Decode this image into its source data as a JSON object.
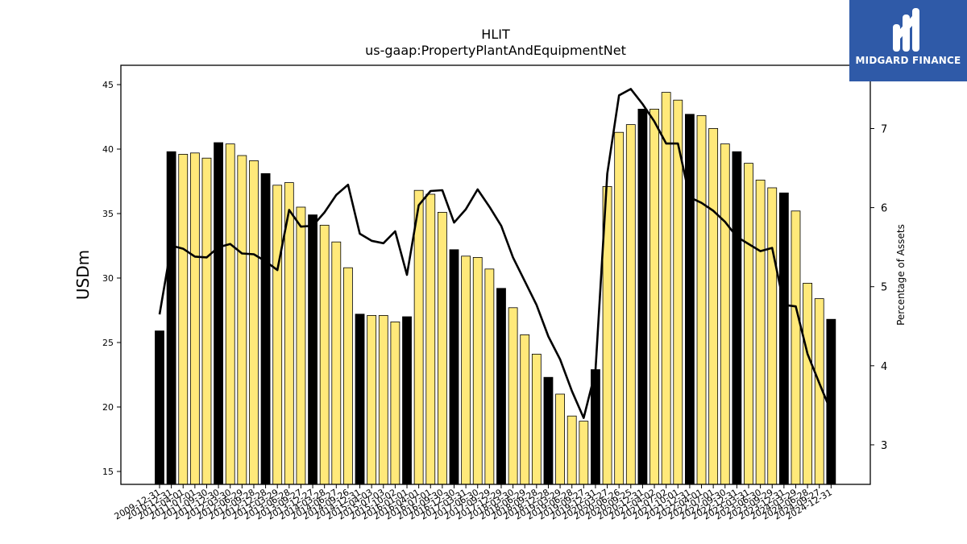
{
  "brand": {
    "name": "MIDGARD FINANCE",
    "color": "#2f5aa8"
  },
  "chart_data": {
    "type": "bar",
    "title": "HLIT",
    "subtitle": "us-gaap:PropertyPlantAndEquipmentNet",
    "ylabel": "USDm",
    "y2label": "Percentage of Assets",
    "ylim": [
      14,
      46.5
    ],
    "y2lim": [
      2.5,
      7.8
    ],
    "yticks": [
      15,
      20,
      25,
      30,
      35,
      40,
      45
    ],
    "y2ticks": [
      3,
      4,
      5,
      6,
      7
    ],
    "colors": {
      "annual": "#000000",
      "quarterly": "#ffe97a",
      "line": "#000000"
    },
    "categories": [
      "2009-12-31",
      "2010-12-31",
      "2011-04-01",
      "2011-07-01",
      "2011-09-30",
      "2011-12-30",
      "2012-03-30",
      "2012-06-29",
      "2012-09-28",
      "2012-12-28",
      "2013-03-29",
      "2013-06-28",
      "2013-09-27",
      "2013-12-27",
      "2014-03-28",
      "2014-06-27",
      "2014-09-26",
      "2014-12-31",
      "2015-04-03",
      "2015-07-03",
      "2015-10-02",
      "2016-01-01",
      "2016-04-01",
      "2016-07-01",
      "2016-09-30",
      "2016-12-30",
      "2017-03-31",
      "2017-06-30",
      "2017-09-29",
      "2017-12-29",
      "2018-03-30",
      "2018-06-29",
      "2018-09-28",
      "2018-12-28",
      "2019-03-29",
      "2019-06-28",
      "2019-09-27",
      "2019-12-31",
      "2020-03-27",
      "2020-06-26",
      "2020-09-25",
      "2020-12-31",
      "2021-04-02",
      "2021-07-02",
      "2021-10-01",
      "2021-12-31",
      "2022-04-01",
      "2022-07-01",
      "2022-09-30",
      "2022-12-31",
      "2023-03-31",
      "2023-06-30",
      "2023-09-29",
      "2023-12-31",
      "2024-03-29",
      "2024-06-28",
      "2024-09-27",
      "2024-12-31"
    ],
    "series": [
      {
        "values": [
          25.9,
          39.8,
          39.6,
          39.7,
          39.3,
          40.5,
          40.4,
          39.5,
          39.1,
          38.1,
          37.2,
          37.4,
          35.5,
          34.9,
          34.1,
          32.8,
          30.8,
          27.2,
          27.1,
          27.1,
          26.6,
          27.0,
          36.8,
          36.5,
          35.1,
          32.2,
          31.7,
          31.6,
          30.7,
          29.2,
          27.7,
          25.6,
          24.1,
          22.3,
          21.0,
          19.3,
          18.9,
          22.9,
          37.1,
          41.3,
          41.9,
          43.1,
          43.1,
          44.4,
          43.8,
          42.7,
          42.6,
          41.6,
          40.4,
          39.8,
          38.9,
          37.6,
          37.0,
          36.6,
          35.2,
          29.6,
          28.4,
          26.8
        ],
        "annual": [
          true,
          true,
          false,
          false,
          false,
          true,
          false,
          false,
          false,
          true,
          false,
          false,
          false,
          true,
          false,
          false,
          false,
          true,
          false,
          false,
          false,
          true,
          false,
          false,
          false,
          true,
          false,
          false,
          false,
          true,
          false,
          false,
          false,
          true,
          false,
          false,
          false,
          true,
          false,
          false,
          false,
          true,
          false,
          false,
          false,
          true,
          false,
          false,
          false,
          true,
          false,
          false,
          false,
          true,
          false,
          false,
          false,
          true
        ]
      },
      {
        "values": [
          4.65,
          5.52,
          5.48,
          5.38,
          5.37,
          5.5,
          5.54,
          5.42,
          5.41,
          5.32,
          5.21,
          5.97,
          5.76,
          5.77,
          5.94,
          6.16,
          6.29,
          5.67,
          5.58,
          5.55,
          5.7,
          5.15,
          6.03,
          6.21,
          6.22,
          5.81,
          5.98,
          6.23,
          6.01,
          5.77,
          5.37,
          5.07,
          4.77,
          4.37,
          4.08,
          3.68,
          3.34,
          3.93,
          6.43,
          7.42,
          7.5,
          7.31,
          7.09,
          6.81,
          6.81,
          6.13,
          6.06,
          5.96,
          5.82,
          5.63,
          5.54,
          5.45,
          5.49,
          4.77,
          4.75,
          4.15,
          3.78,
          3.42
        ]
      }
    ]
  }
}
